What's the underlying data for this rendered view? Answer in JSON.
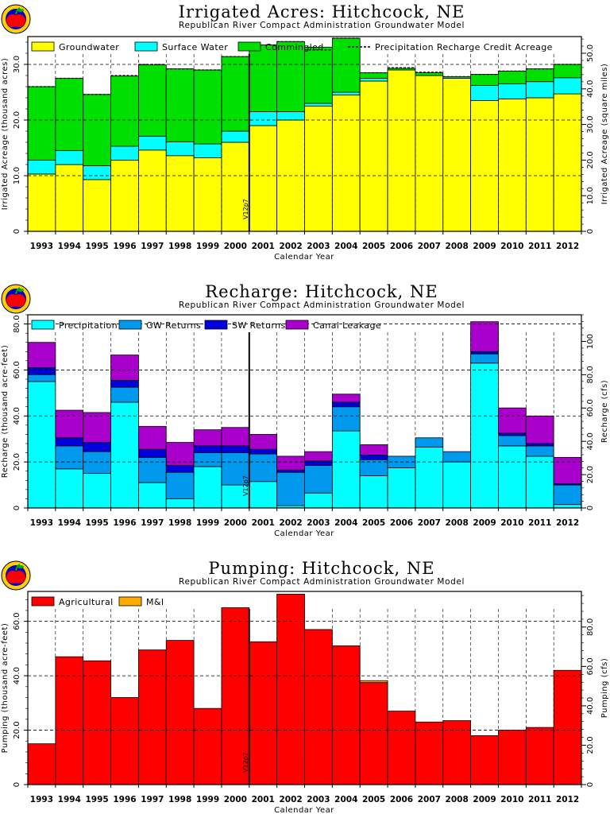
{
  "chart_data": [
    {
      "type": "bar",
      "title": "Irrigated Acres: Hitchcock, NE",
      "subtitle": "Republican River Compact Administration Groundwater Model",
      "xlabel": "Calendar Year",
      "ylabel": "Irrigated Acreage (thousand acres)",
      "ylabel_right": "Irrigated Acreage (square miles)",
      "ylim": [
        0,
        35
      ],
      "yticks": [
        0,
        10,
        20,
        30
      ],
      "ytick_labels": [
        "0",
        "10.0",
        "20.0",
        "30.0"
      ],
      "y2lim": [
        0,
        54.69
      ],
      "y2ticks": [
        0,
        10,
        20,
        30,
        40,
        50
      ],
      "y2tick_labels": [
        "0",
        "10.0",
        "20.0",
        "30.0",
        "40.0",
        "50.0"
      ],
      "marker_text": "V12p7",
      "categories": [
        "1993",
        "1994",
        "1995",
        "1996",
        "1997",
        "1998",
        "1999",
        "2000",
        "2001",
        "2002",
        "2003",
        "2004",
        "2005",
        "2006",
        "2007",
        "2008",
        "2009",
        "2010",
        "2011",
        "2012"
      ],
      "series": [
        {
          "name": "Groundwater",
          "color": "#ffff00",
          "values": [
            10.3,
            12.0,
            9.3,
            12.8,
            14.6,
            13.6,
            13.2,
            16.0,
            19.0,
            20.0,
            22.5,
            24.5,
            27.0,
            29.0,
            28.0,
            27.5,
            23.5,
            23.8,
            24.0,
            24.7
          ]
        },
        {
          "name": "Surface Water",
          "color": "#00ffff",
          "values": [
            2.5,
            2.5,
            2.5,
            2.5,
            2.5,
            2.5,
            2.5,
            2.0,
            2.5,
            1.5,
            0.5,
            0.5,
            0.5,
            0.0,
            0.0,
            0.0,
            2.7,
            2.7,
            2.9,
            2.9
          ]
        },
        {
          "name": "Commingled",
          "color": "#00e000",
          "values": [
            13.2,
            13.0,
            12.8,
            12.6,
            12.8,
            13.1,
            13.3,
            13.4,
            12.0,
            12.6,
            10.1,
            9.7,
            1.0,
            0.3,
            0.5,
            0.3,
            2.0,
            2.3,
            2.3,
            2.4
          ]
        },
        {
          "name": "Precipitation Recharge Credit Acreage",
          "color": "#000000",
          "values": [
            26.0,
            27.5,
            24.6,
            28.0,
            30.0,
            29.2,
            29.0,
            31.4,
            33.5,
            34.1,
            32.6,
            34.7,
            28.5,
            29.4,
            28.6,
            27.8,
            28.2,
            28.8,
            29.2,
            30.0
          ]
        }
      ]
    },
    {
      "type": "bar",
      "title": "Recharge: Hitchcock, NE",
      "subtitle": "Republican River Compact Administration Groundwater Model",
      "xlabel": "Calendar Year",
      "ylabel": "Recharge (thousand acre-feet)",
      "ylabel_right": "Recharge (cfs)",
      "ylim": [
        0,
        84
      ],
      "yticks": [
        0,
        20,
        40,
        60,
        80
      ],
      "ytick_labels": [
        "0",
        "20.0",
        "40.0",
        "60.0",
        "80.0"
      ],
      "y2lim": [
        0,
        116
      ],
      "y2ticks": [
        0,
        20,
        40,
        60,
        80,
        100
      ],
      "y2tick_labels": [
        "0",
        "20.0",
        "40.0",
        "60.0",
        "80.0",
        "100"
      ],
      "marker_text": "V12p7",
      "categories": [
        "1993",
        "1994",
        "1995",
        "1996",
        "1997",
        "1998",
        "1999",
        "2000",
        "2001",
        "2002",
        "2003",
        "2004",
        "2005",
        "2006",
        "2007",
        "2008",
        "2009",
        "2010",
        "2011",
        "2012"
      ],
      "series": [
        {
          "name": "Precipitation",
          "color": "#00ffff",
          "values": [
            55.0,
            17.0,
            15.0,
            46.0,
            11.0,
            4.0,
            18.0,
            10.0,
            11.5,
            1.0,
            6.5,
            33.5,
            14.0,
            17.5,
            26.5,
            20.0,
            63.0,
            27.0,
            22.5,
            1.5
          ]
        },
        {
          "name": "GW Returns",
          "color": "#0099ee",
          "values": [
            3.0,
            10.0,
            9.5,
            6.5,
            11.0,
            11.5,
            6.0,
            14.0,
            12.0,
            14.5,
            12.0,
            10.5,
            7.0,
            5.0,
            4.0,
            4.5,
            4.0,
            4.5,
            4.5,
            8.5
          ]
        },
        {
          "name": "SW Returns",
          "color": "#0000dd",
          "values": [
            3.0,
            3.5,
            4.0,
            3.0,
            3.5,
            3.0,
            3.0,
            3.0,
            2.0,
            1.0,
            2.0,
            2.0,
            2.0,
            0.0,
            0.0,
            0.0,
            1.0,
            1.0,
            1.0,
            0.5
          ]
        },
        {
          "name": "Canal Leakage",
          "color": "#aa00cc",
          "values": [
            11.0,
            12.0,
            13.0,
            11.0,
            10.0,
            10.0,
            7.0,
            8.0,
            6.5,
            6.0,
            4.0,
            3.5,
            4.5,
            0.0,
            0.0,
            0.0,
            13.0,
            11.0,
            12.0,
            11.5
          ]
        }
      ]
    },
    {
      "type": "bar",
      "title": "Pumping: Hitchcock, NE",
      "subtitle": "Republican River Compact Administration Groundwater Model",
      "xlabel": "Calendar Year",
      "ylabel": "Pumping (thousand acre-feet)",
      "ylabel_right": "Pumping (cfs)",
      "ylim": [
        0,
        71
      ],
      "yticks": [
        0,
        20,
        40,
        60
      ],
      "ytick_labels": [
        "0",
        "20.0",
        "40.0",
        "60.0"
      ],
      "y2lim": [
        0,
        98.1
      ],
      "y2ticks": [
        0,
        20,
        40,
        60,
        80
      ],
      "y2tick_labels": [
        "0",
        "20.0",
        "40.0",
        "60.0",
        "80.0"
      ],
      "marker_text": "V12p7",
      "categories": [
        "1993",
        "1994",
        "1995",
        "1996",
        "1997",
        "1998",
        "1999",
        "2000",
        "2001",
        "2002",
        "2003",
        "2004",
        "2005",
        "2006",
        "2007",
        "2008",
        "2009",
        "2010",
        "2011",
        "2012"
      ],
      "series": [
        {
          "name": "Agricultural",
          "color": "#ff0000",
          "values": [
            15.0,
            47.0,
            45.5,
            32.0,
            49.5,
            53.0,
            28.0,
            65.0,
            52.5,
            70.0,
            57.0,
            51.0,
            37.5,
            27.0,
            23.0,
            23.5,
            18.0,
            20.0,
            21.0,
            42.0
          ]
        },
        {
          "name": "M&I",
          "color": "#ffaa00",
          "values": [
            0.0,
            0.0,
            0.0,
            0.0,
            0.0,
            0.0,
            0.0,
            0.0,
            0.0,
            0.0,
            0.0,
            0.0,
            0.7,
            0.0,
            0.0,
            0.0,
            0.0,
            0.0,
            0.0,
            0.0
          ]
        }
      ]
    }
  ],
  "logo": {
    "name": "apple-logo",
    "colors": [
      "#ff0000",
      "#ffd000",
      "#0000cc",
      "#00aa00"
    ]
  },
  "colors": {
    "grid": "#000000",
    "background": "#ffffff"
  }
}
